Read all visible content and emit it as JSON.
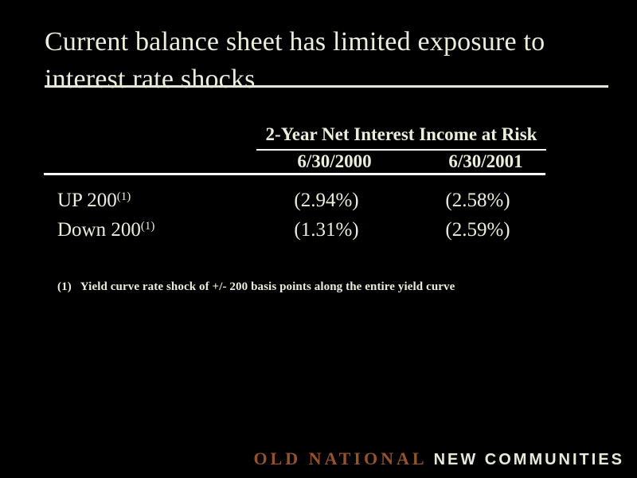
{
  "title": {
    "line1": "Current balance sheet has limited exposure to",
    "line2": "interest rate shocks"
  },
  "table": {
    "header_title": "2-Year Net Interest Income at Risk",
    "columns": [
      "6/30/2000",
      "6/30/2001"
    ],
    "rows": [
      {
        "label": "UP 200",
        "ref": "(1)",
        "values": [
          "(2.94%)",
          "(2.58%)"
        ]
      },
      {
        "label": "Down 200",
        "ref": "(1)",
        "values": [
          "(1.31%)",
          "(2.59%)"
        ]
      }
    ]
  },
  "footnote": {
    "marker": "(1)",
    "text": "Yield curve rate shock of +/- 200 basis points along the entire yield curve"
  },
  "footer": {
    "brand_primary": "OLD NATIONAL",
    "brand_secondary": "NEW COMMUNITIES"
  },
  "colors": {
    "background": "#000000",
    "text": "#EDEDDB",
    "rule_title": "#E6E6D4",
    "rule_table": "#FFFFFF",
    "brand_primary": "#95522B",
    "brand_secondary": "#E9E9DA"
  }
}
